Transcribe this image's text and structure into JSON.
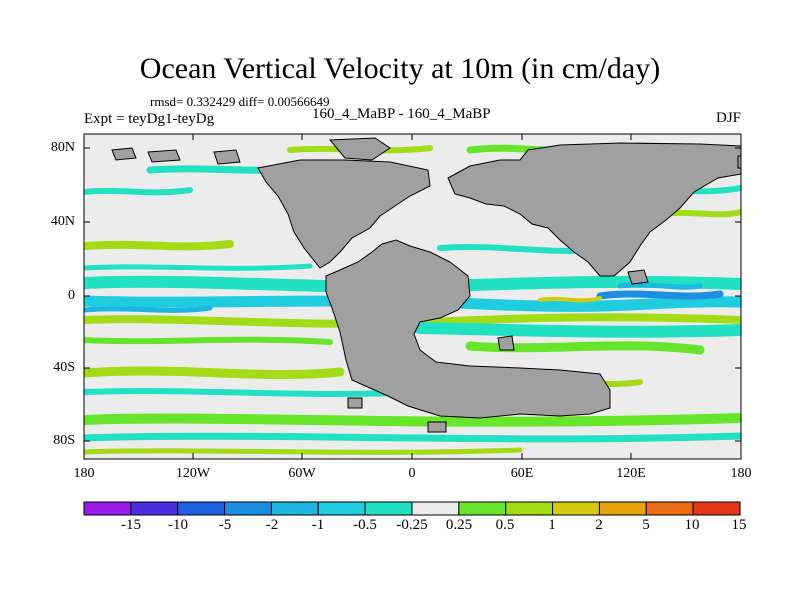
{
  "title": "Ocean Vertical Velocity at 10m (in cm/day)",
  "stats_line": "rmsd= 0.332429 diff= 0.00566649",
  "experiment": "Expt = teyDg1-teyDg",
  "runs": "160_4_MaBP - 160_4_MaBP",
  "season": "DJF",
  "lat_labels": [
    "80N",
    "40N",
    "0",
    "40S",
    "80S"
  ],
  "lon_labels": [
    "180",
    "120W",
    "60W",
    "0",
    "60E",
    "120E",
    "180"
  ],
  "colorbar": {
    "labels": [
      "-15",
      "-10",
      "-5",
      "-2",
      "-1",
      "-0.5",
      "-0.25",
      "0.25",
      "0.5",
      "1",
      "2",
      "5",
      "10",
      "15"
    ],
    "colors": [
      "#9a1bea",
      "#4a2ee0",
      "#1e5fe0",
      "#1c8fe0",
      "#1cb6e0",
      "#20cde0",
      "#22e0c2",
      "#ececec",
      "#66e52a",
      "#a3dc16",
      "#d4c90f",
      "#e7a20e",
      "#e86a12",
      "#e4361a"
    ]
  },
  "land_color": "#a0a0a0",
  "background_color": "#ececec"
}
